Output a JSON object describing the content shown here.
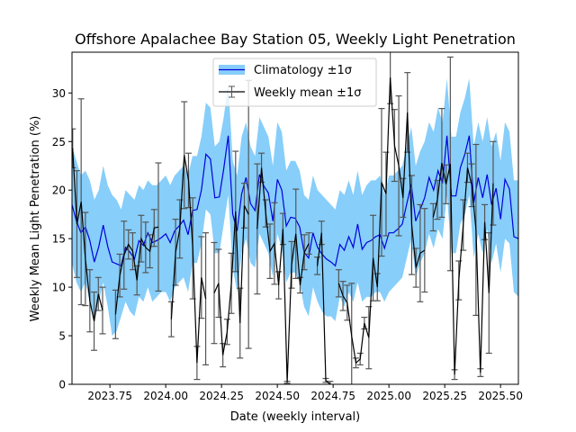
{
  "chart_data": {
    "type": "line",
    "title": "Offshore Apalachee Bay Station 05, Weekly Light Penetration",
    "xlabel": "Date (weekly interval)",
    "ylabel": "Weekly Mean Light Penetration (%)",
    "xlim": [
      2023.58,
      2025.58
    ],
    "ylim": [
      0,
      34.2
    ],
    "xticks": [
      2023.75,
      2024.0,
      2024.25,
      2024.5,
      2024.75,
      2025.0,
      2025.25,
      2025.5
    ],
    "xtick_labels": [
      "2023.75",
      "2024.00",
      "2024.25",
      "2024.50",
      "2024.75",
      "2025.00",
      "2025.25",
      "2025.50"
    ],
    "yticks": [
      0,
      5,
      10,
      15,
      20,
      25,
      30
    ],
    "ytick_labels": [
      "0",
      "5",
      "10",
      "15",
      "20",
      "25",
      "30"
    ],
    "legend": {
      "position": "upper center",
      "entries": [
        "Climatology ±1σ",
        "Weekly mean ±1σ"
      ]
    },
    "colors": {
      "climatology_line": "#0000dd",
      "climatology_band": "#87cefa",
      "weekly_line": "#000000",
      "errorbar": "#555555"
    },
    "series": [
      {
        "name": "Climatology ±1σ",
        "x": [
          2023.58,
          2023.6,
          2023.62,
          2023.64,
          2023.66,
          2023.68,
          2023.7,
          2023.72,
          2023.74,
          2023.76,
          2023.78,
          2023.8,
          2023.82,
          2023.84,
          2023.86,
          2023.88,
          2023.9,
          2023.92,
          2023.94,
          2023.96,
          2023.98,
          2024.0,
          2024.02,
          2024.04,
          2024.06,
          2024.08,
          2024.1,
          2024.12,
          2024.14,
          2024.16,
          2024.18,
          2024.2,
          2024.22,
          2024.24,
          2024.26,
          2024.28,
          2024.3,
          2024.32,
          2024.34,
          2024.36,
          2024.38,
          2024.4,
          2024.42,
          2024.44,
          2024.46,
          2024.48,
          2024.5,
          2024.52,
          2024.54,
          2024.56,
          2024.58,
          2024.6,
          2024.62,
          2024.64,
          2024.66,
          2024.68,
          2024.7,
          2024.72,
          2024.74,
          2024.76,
          2024.78,
          2024.8,
          2024.82,
          2024.84,
          2024.86,
          2024.88,
          2024.9,
          2024.92,
          2024.94,
          2024.96,
          2024.98,
          2025.0,
          2025.02,
          2025.04,
          2025.06,
          2025.08,
          2025.1,
          2025.12,
          2025.14,
          2025.16,
          2025.18,
          2025.2,
          2025.22,
          2025.24,
          2025.26,
          2025.28,
          2025.3,
          2025.32,
          2025.34,
          2025.36,
          2025.38,
          2025.4,
          2025.42,
          2025.44,
          2025.46,
          2025.48,
          2025.5,
          2025.52,
          2025.54,
          2025.56,
          2025.58
        ],
        "mean": [
          18.5,
          16.8,
          15.6,
          16.2,
          14.8,
          12.6,
          14.2,
          16.4,
          14.2,
          12.6,
          12.4,
          12.2,
          14.1,
          13.6,
          12.9,
          14.8,
          14.3,
          15.6,
          14.6,
          14.8,
          15.1,
          15.5,
          14.6,
          15.8,
          16.3,
          16.9,
          15.4,
          17.9,
          18.0,
          20.0,
          23.7,
          23.2,
          19.2,
          19.3,
          22.2,
          25.6,
          17.5,
          15.8,
          19.6,
          21.3,
          18.6,
          17.9,
          21.6,
          20.4,
          19.7,
          16.8,
          21.1,
          20.0,
          16.3,
          17.2,
          17.1,
          16.2,
          13.6,
          13.0,
          15.6,
          14.1,
          13.4,
          12.9,
          12.6,
          12.2,
          14.4,
          13.8,
          15.2,
          14.1,
          16.5,
          13.9,
          14.6,
          14.8,
          15.2,
          15.4,
          14.0,
          15.6,
          15.6,
          16.0,
          16.5,
          18.6,
          20.6,
          16.8,
          18.0,
          19.2,
          21.3,
          20.0,
          22.0,
          20.7,
          25.6,
          19.4,
          19.4,
          22.3,
          23.7,
          25.6,
          18.7,
          21.3,
          19.2,
          21.6,
          18.5,
          20.2,
          17.0,
          21.1,
          20.1,
          15.2,
          15.0
        ],
        "lower": [
          12.5,
          10.5,
          9.5,
          10.5,
          8.5,
          6.5,
          8.5,
          10.5,
          8.0,
          5.0,
          5.5,
          7.0,
          8.5,
          7.5,
          7.0,
          9.0,
          8.5,
          10.0,
          8.5,
          9.0,
          9.5,
          9.5,
          8.5,
          10.0,
          10.5,
          11.0,
          9.5,
          12.5,
          12.5,
          14.5,
          18.0,
          17.5,
          13.5,
          13.5,
          16.5,
          19.5,
          12.0,
          9.5,
          13.5,
          15.0,
          12.5,
          12.0,
          15.5,
          14.5,
          13.5,
          11.0,
          15.5,
          14.0,
          10.5,
          11.5,
          11.5,
          10.5,
          8.0,
          7.0,
          10.0,
          8.5,
          7.5,
          7.0,
          7.0,
          6.5,
          9.0,
          8.0,
          9.5,
          8.5,
          10.5,
          8.5,
          9.0,
          9.0,
          9.5,
          9.5,
          8.5,
          9.5,
          10.0,
          10.5,
          11.0,
          13.0,
          15.0,
          11.0,
          12.5,
          13.5,
          15.5,
          14.0,
          16.0,
          15.0,
          19.5,
          13.5,
          13.5,
          16.5,
          17.5,
          19.5,
          13.0,
          15.5,
          13.5,
          16.0,
          12.5,
          14.5,
          11.5,
          15.0,
          14.5,
          9.5,
          9.0
        ],
        "upper": [
          24.5,
          23.0,
          21.5,
          22.0,
          21.0,
          19.0,
          20.0,
          22.5,
          20.5,
          19.5,
          19.0,
          18.0,
          20.0,
          19.5,
          19.0,
          20.5,
          20.0,
          21.0,
          20.5,
          20.5,
          21.0,
          21.5,
          20.5,
          21.5,
          22.0,
          22.5,
          21.5,
          23.5,
          23.5,
          25.5,
          29.0,
          28.5,
          24.5,
          25.0,
          27.5,
          31.0,
          23.0,
          21.5,
          25.5,
          27.0,
          24.5,
          23.5,
          27.5,
          26.5,
          25.5,
          22.5,
          27.0,
          26.0,
          22.0,
          23.0,
          23.0,
          22.0,
          19.5,
          19.0,
          21.5,
          20.0,
          19.5,
          19.0,
          18.5,
          18.0,
          20.0,
          19.5,
          21.0,
          19.5,
          22.0,
          19.5,
          20.5,
          21.0,
          21.0,
          21.5,
          19.5,
          21.5,
          21.5,
          22.0,
          22.5,
          24.5,
          26.5,
          22.5,
          24.0,
          25.0,
          27.0,
          26.0,
          28.5,
          27.0,
          31.5,
          25.5,
          25.5,
          28.0,
          29.5,
          31.5,
          24.5,
          27.0,
          25.0,
          27.5,
          24.5,
          26.0,
          23.0,
          27.0,
          26.0,
          21.0,
          21.0
        ]
      },
      {
        "name": "Weekly mean ±1σ",
        "points": [
          {
            "x": 2023.583,
            "y": 24.3,
            "err": 2.0
          },
          {
            "x": 2023.602,
            "y": 16.5,
            "err": 5.5
          },
          {
            "x": 2023.621,
            "y": 18.8,
            "err": 10.6
          },
          {
            "x": 2023.64,
            "y": 12.9,
            "err": 4.8
          },
          {
            "x": 2023.66,
            "y": 8.6,
            "err": 3.2
          },
          {
            "x": 2023.679,
            "y": 6.5,
            "err": 3.0
          },
          {
            "x": 2023.698,
            "y": 9.3,
            "err": 1.7
          },
          {
            "x": 2023.717,
            "y": 7.6,
            "err": 2.4
          },
          {
            "x": 2023.737,
            "y": null,
            "err": null
          },
          {
            "x": 2023.756,
            "y": null,
            "err": null
          },
          {
            "x": 2023.775,
            "y": 7.2,
            "err": 2.5
          },
          {
            "x": 2023.794,
            "y": 11.2,
            "err": 2.2
          },
          {
            "x": 2023.813,
            "y": 13.3,
            "err": 3.5
          },
          {
            "x": 2023.833,
            "y": 14.4,
            "err": 1.5
          },
          {
            "x": 2023.852,
            "y": 13.7,
            "err": 1.9
          },
          {
            "x": 2023.871,
            "y": 10.7,
            "err": 1.5
          },
          {
            "x": 2023.89,
            "y": 15.0,
            "err": 2.4
          },
          {
            "x": 2023.91,
            "y": 14.1,
            "err": 2.6
          },
          {
            "x": 2023.929,
            "y": 13.7,
            "err": 1.7
          },
          {
            "x": 2023.948,
            "y": 16.1,
            "err": 1.9
          },
          {
            "x": 2023.967,
            "y": 16.2,
            "err": 6.6
          },
          {
            "x": 2023.987,
            "y": null,
            "err": null
          },
          {
            "x": 2024.006,
            "y": null,
            "err": null
          },
          {
            "x": 2024.025,
            "y": 6.7,
            "err": 1.8
          },
          {
            "x": 2024.044,
            "y": 13.6,
            "err": 3.4
          },
          {
            "x": 2024.063,
            "y": 16.0,
            "err": 3.0
          },
          {
            "x": 2024.083,
            "y": 23.6,
            "err": 5.5
          },
          {
            "x": 2024.102,
            "y": 21.0,
            "err": 2.8
          },
          {
            "x": 2024.121,
            "y": 14.0,
            "err": 5.2
          },
          {
            "x": 2024.14,
            "y": 2.2,
            "err": 1.7
          },
          {
            "x": 2024.16,
            "y": 11.0,
            "err": 4.2
          },
          {
            "x": 2024.179,
            "y": 8.8,
            "err": 6.8
          },
          {
            "x": 2024.198,
            "y": null,
            "err": null
          },
          {
            "x": 2024.217,
            "y": 9.4,
            "err": 5.2
          },
          {
            "x": 2024.237,
            "y": 10.4,
            "err": 3.5
          },
          {
            "x": 2024.256,
            "y": 3.0,
            "err": 1.2
          },
          {
            "x": 2024.275,
            "y": 5.4,
            "err": 1.3
          },
          {
            "x": 2024.294,
            "y": 10.4,
            "err": 3.1
          },
          {
            "x": 2024.313,
            "y": 17.8,
            "err": 6.2
          },
          {
            "x": 2024.333,
            "y": 6.3,
            "err": 3.6
          },
          {
            "x": 2024.352,
            "y": 18.4,
            "err": 2.3
          },
          {
            "x": 2024.371,
            "y": 17.5,
            "err": 13.8
          },
          {
            "x": 2024.39,
            "y": null,
            "err": null
          },
          {
            "x": 2024.41,
            "y": 16.0,
            "err": 6.7
          },
          {
            "x": 2024.429,
            "y": 22.3,
            "err": 1.5
          },
          {
            "x": 2024.448,
            "y": 17.6,
            "err": 1.4
          },
          {
            "x": 2024.467,
            "y": 13.7,
            "err": 2.8
          },
          {
            "x": 2024.487,
            "y": 14.5,
            "err": 4.2
          },
          {
            "x": 2024.506,
            "y": 10.2,
            "err": 1.4
          },
          {
            "x": 2024.525,
            "y": 16.0,
            "err": 1.6
          },
          {
            "x": 2024.544,
            "y": 0.2,
            "err": 0.1
          },
          {
            "x": 2024.564,
            "y": 12.3,
            "err": 2.4
          },
          {
            "x": 2024.583,
            "y": 15.5,
            "err": 4.6
          },
          {
            "x": 2024.602,
            "y": 10.2,
            "err": 0.8
          },
          {
            "x": 2024.621,
            "y": 13.6,
            "err": 1.8
          },
          {
            "x": 2024.641,
            "y": 14.5,
            "err": 1.1
          },
          {
            "x": 2024.66,
            "y": null,
            "err": null
          },
          {
            "x": 2024.679,
            "y": 12.2,
            "err": 0.9
          },
          {
            "x": 2024.698,
            "y": 15.6,
            "err": 1.2
          },
          {
            "x": 2024.717,
            "y": 0.4,
            "err": 0.2
          },
          {
            "x": 2024.737,
            "y": 0.0,
            "err": 0.3
          },
          {
            "x": 2024.756,
            "y": null,
            "err": null
          },
          {
            "x": 2024.775,
            "y": 10.4,
            "err": 1.4
          },
          {
            "x": 2024.794,
            "y": 9.1,
            "err": 1.5
          },
          {
            "x": 2024.813,
            "y": 8.4,
            "err": 1.8
          },
          {
            "x": 2024.833,
            "y": 5.0,
            "err": 5.4
          },
          {
            "x": 2024.852,
            "y": 2.2,
            "err": 0.5
          },
          {
            "x": 2024.871,
            "y": 2.6,
            "err": 0.6
          },
          {
            "x": 2024.89,
            "y": 6.3,
            "err": 0.6
          },
          {
            "x": 2024.91,
            "y": 4.8,
            "err": 3.2
          },
          {
            "x": 2024.929,
            "y": 13.0,
            "err": 4.4
          },
          {
            "x": 2024.948,
            "y": 10.0,
            "err": 1.4
          },
          {
            "x": 2024.967,
            "y": 20.8,
            "err": 7.6
          },
          {
            "x": 2024.987,
            "y": 19.6,
            "err": 4.3
          },
          {
            "x": 2025.006,
            "y": 31.6,
            "err": 2.7
          },
          {
            "x": 2025.025,
            "y": 24.6,
            "err": 3.7
          },
          {
            "x": 2025.044,
            "y": 22.5,
            "err": 7.2
          },
          {
            "x": 2025.063,
            "y": 19.2,
            "err": 2.0
          },
          {
            "x": 2025.083,
            "y": 28.0,
            "err": 4.1
          },
          {
            "x": 2025.102,
            "y": 16.4,
            "err": 5.1
          },
          {
            "x": 2025.121,
            "y": 12.0,
            "err": 2.0
          },
          {
            "x": 2025.14,
            "y": 13.5,
            "err": 5.0
          },
          {
            "x": 2025.16,
            "y": 13.8,
            "err": 4.3
          },
          {
            "x": 2025.179,
            "y": null,
            "err": null
          },
          {
            "x": 2025.198,
            "y": 17.2,
            "err": 1.4
          },
          {
            "x": 2025.217,
            "y": 19.0,
            "err": 2.0
          },
          {
            "x": 2025.237,
            "y": 22.8,
            "err": 5.6
          },
          {
            "x": 2025.256,
            "y": 20.6,
            "err": 2.0
          },
          {
            "x": 2025.275,
            "y": 22.7,
            "err": 11.0
          },
          {
            "x": 2025.294,
            "y": 1.0,
            "err": 0.5
          },
          {
            "x": 2025.313,
            "y": 10.7,
            "err": 2.0
          },
          {
            "x": 2025.333,
            "y": 16.4,
            "err": 2.6
          },
          {
            "x": 2025.352,
            "y": 22.3,
            "err": 1.5
          },
          {
            "x": 2025.371,
            "y": 20.5,
            "err": 2.2
          },
          {
            "x": 2025.39,
            "y": 15.9,
            "err": 8.8
          },
          {
            "x": 2025.41,
            "y": 1.2,
            "err": 0.4
          },
          {
            "x": 2025.429,
            "y": 16.7,
            "err": 1.8
          },
          {
            "x": 2025.448,
            "y": 9.4,
            "err": 6.2
          },
          {
            "x": 2025.467,
            "y": 20.7,
            "err": 4.3
          }
        ]
      }
    ]
  }
}
